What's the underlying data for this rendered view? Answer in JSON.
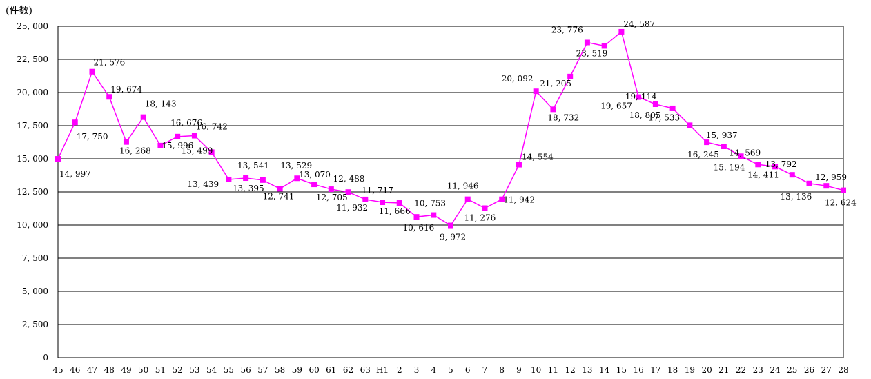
{
  "chart_data": {
    "type": "line",
    "unit_label": "(件数)",
    "categories": [
      "45",
      "46",
      "47",
      "48",
      "49",
      "50",
      "51",
      "52",
      "53",
      "54",
      "55",
      "56",
      "57",
      "58",
      "59",
      "60",
      "61",
      "62",
      "63",
      "H1",
      "2",
      "3",
      "4",
      "5",
      "6",
      "7",
      "8",
      "9",
      "10",
      "11",
      "12",
      "13",
      "14",
      "15",
      "16",
      "17",
      "18",
      "19",
      "20",
      "21",
      "22",
      "23",
      "24",
      "25",
      "26",
      "27",
      "28"
    ],
    "values": [
      14997,
      17750,
      21576,
      19674,
      16268,
      18143,
      15996,
      16676,
      16742,
      15499,
      13439,
      13541,
      13395,
      12741,
      13529,
      13070,
      12705,
      12488,
      11932,
      11717,
      11666,
      10616,
      10753,
      9972,
      11946,
      11276,
      11942,
      14554,
      20092,
      18732,
      21205,
      23776,
      23519,
      24587,
      19657,
      19114,
      18805,
      17533,
      16245,
      15937,
      15194,
      14569,
      14411,
      13792,
      13136,
      12959,
      12624
    ],
    "data_labels": [
      "14, 997",
      "17, 750",
      "21, 576",
      "19, 674",
      "16, 268",
      "18, 143",
      "15, 996",
      "16, 676",
      "16, 742",
      "15, 499",
      "13, 439",
      "13, 541",
      "13, 395",
      "12, 741",
      "13, 529",
      "13, 070",
      "12, 705",
      "12, 488",
      "11, 932",
      "11, 717",
      "11, 666",
      "10, 616",
      "10, 753",
      "9, 972",
      "11, 946",
      "11, 276",
      "11, 942",
      "14, 554",
      "20, 092",
      "18, 732",
      "21, 205",
      "23, 776",
      "23, 519",
      "24, 587",
      "19, 657",
      "19, 114",
      "18, 805",
      "17, 533",
      "16, 245",
      "15, 937",
      "15, 194",
      "14, 569",
      "14, 411",
      "13, 792",
      "13, 136",
      "12, 959",
      "12, 624"
    ],
    "y_ticks": [
      0,
      2500,
      5000,
      7500,
      10000,
      12500,
      15000,
      17500,
      20000,
      22500,
      25000
    ],
    "y_tick_labels": [
      "0",
      "2, 500",
      "5, 000",
      "7, 500",
      "10, 000",
      "12, 500",
      "15, 000",
      "17, 500",
      "20, 000",
      "22, 500",
      "25, 000"
    ],
    "ylim": [
      0,
      25000
    ],
    "grid": true,
    "line_color": "#ff00ff",
    "marker": "square"
  }
}
